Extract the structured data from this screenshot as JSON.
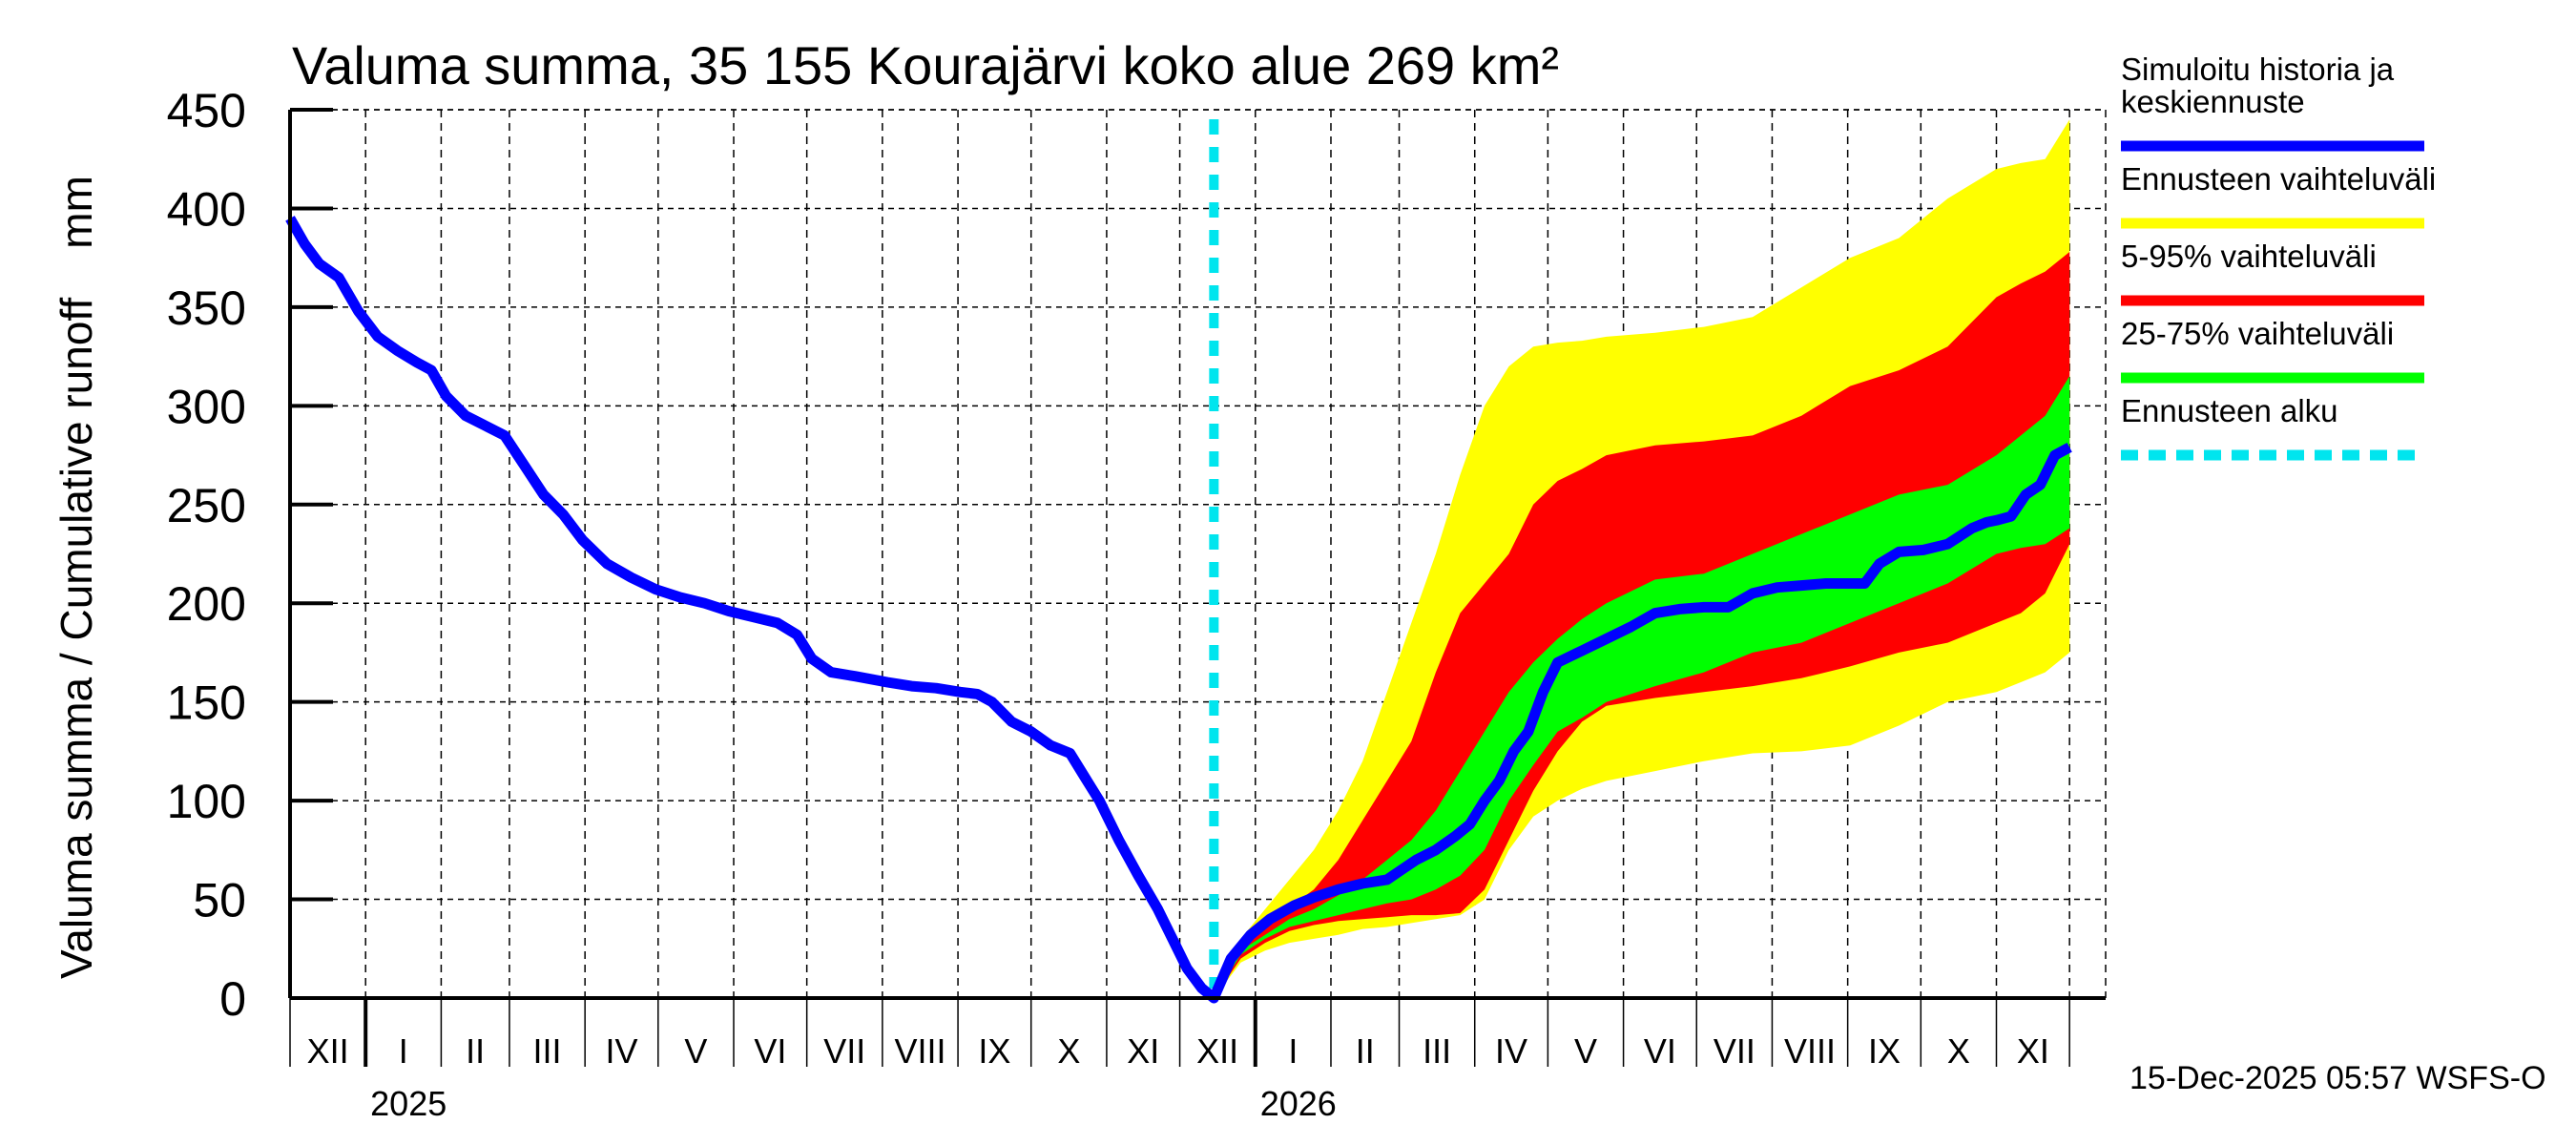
{
  "chart_data": {
    "type": "area",
    "title": "Valuma summa, 35 155 Kourajärvi koko alue 269 km²",
    "ylabel": "Valuma summa / Cumulative runoff    mm",
    "y_unit": "mm",
    "ylim": [
      0,
      450
    ],
    "yticks": [
      0,
      50,
      100,
      150,
      200,
      250,
      300,
      350,
      400,
      450
    ],
    "x_unit": "days since 2024-12-01",
    "xlim": [
      0,
      745
    ],
    "grid": true,
    "month_ticks": [
      {
        "label": "XII",
        "day": 0
      },
      {
        "label": "I",
        "day": 31
      },
      {
        "label": "II",
        "day": 62
      },
      {
        "label": "III",
        "day": 90
      },
      {
        "label": "IV",
        "day": 121
      },
      {
        "label": "V",
        "day": 151
      },
      {
        "label": "VI",
        "day": 182
      },
      {
        "label": "VII",
        "day": 212
      },
      {
        "label": "VIII",
        "day": 243
      },
      {
        "label": "IX",
        "day": 274
      },
      {
        "label": "X",
        "day": 304
      },
      {
        "label": "XI",
        "day": 335
      },
      {
        "label": "XII",
        "day": 365
      },
      {
        "label": "I",
        "day": 396
      },
      {
        "label": "II",
        "day": 427
      },
      {
        "label": "III",
        "day": 455
      },
      {
        "label": "IV",
        "day": 486
      },
      {
        "label": "V",
        "day": 516
      },
      {
        "label": "VI",
        "day": 547
      },
      {
        "label": "VII",
        "day": 577
      },
      {
        "label": "VIII",
        "day": 608
      },
      {
        "label": "IX",
        "day": 639
      },
      {
        "label": "X",
        "day": 669
      },
      {
        "label": "XI",
        "day": 700
      },
      {
        "label": "",
        "day": 730
      }
    ],
    "year_labels": [
      {
        "label": "2025",
        "day": 31
      },
      {
        "label": "2026",
        "day": 396
      }
    ],
    "forecast_start_day": 379,
    "series": [
      {
        "name": "Simuloitu historia ja keskiennuste",
        "color": "#0000ff",
        "days": [
          0,
          6,
          12,
          20,
          28,
          36,
          44,
          52,
          58,
          64,
          72,
          80,
          88,
          96,
          104,
          112,
          120,
          130,
          140,
          150,
          160,
          170,
          180,
          190,
          200,
          208,
          214,
          222,
          232,
          245,
          255,
          265,
          275,
          282,
          288,
          296,
          304,
          312,
          320,
          326,
          332,
          340,
          348,
          356,
          362,
          368,
          374,
          379,
          386,
          394,
          402,
          412,
          420,
          430,
          440,
          450,
          456,
          462,
          470,
          478,
          484,
          490,
          496,
          502,
          508,
          514,
          520,
          530,
          540,
          550,
          560,
          570,
          580,
          590,
          600,
          610,
          620,
          630,
          640,
          646,
          652,
          660,
          670,
          680,
          690,
          696,
          700,
          706,
          712,
          718,
          724,
          730
        ],
        "values": [
          395,
          382,
          372,
          365,
          348,
          335,
          328,
          322,
          318,
          305,
          295,
          290,
          285,
          270,
          255,
          245,
          232,
          220,
          213,
          207,
          203,
          200,
          196,
          193,
          190,
          184,
          172,
          165,
          163,
          160,
          158,
          157,
          155,
          154,
          150,
          140,
          135,
          128,
          124,
          112,
          100,
          80,
          62,
          45,
          30,
          15,
          5,
          0,
          20,
          32,
          40,
          47,
          51,
          55,
          58,
          60,
          65,
          70,
          75,
          82,
          88,
          100,
          110,
          125,
          135,
          155,
          170,
          176,
          182,
          188,
          195,
          197,
          198,
          198,
          205,
          208,
          209,
          210,
          210,
          210,
          220,
          226,
          227,
          230,
          238,
          241,
          242,
          244,
          255,
          260,
          275,
          279
        ]
      },
      {
        "name": "Ennusteen vaihteluväli",
        "color": "#ffff00",
        "days": [
          379,
          390,
          400,
          410,
          420,
          430,
          440,
          450,
          460,
          470,
          480,
          490,
          500,
          510,
          520,
          530,
          540,
          560,
          580,
          600,
          620,
          640,
          660,
          680,
          700,
          710,
          720,
          730
        ],
        "upper": [
          0,
          30,
          45,
          60,
          75,
          95,
          120,
          155,
          190,
          225,
          265,
          300,
          320,
          330,
          332,
          333,
          335,
          337,
          340,
          345,
          360,
          375,
          385,
          405,
          420,
          423,
          425,
          445
        ],
        "lower": [
          0,
          18,
          24,
          28,
          30,
          32,
          35,
          36,
          38,
          40,
          42,
          50,
          75,
          92,
          100,
          106,
          110,
          115,
          120,
          124,
          125,
          128,
          138,
          150,
          155,
          160,
          165,
          175
        ]
      },
      {
        "name": "5-95% vaihteluväli",
        "color": "#ff0000",
        "days": [
          379,
          390,
          400,
          410,
          420,
          430,
          440,
          450,
          460,
          470,
          480,
          490,
          500,
          510,
          520,
          530,
          540,
          560,
          580,
          600,
          620,
          640,
          660,
          680,
          700,
          710,
          720,
          730
        ],
        "upper": [
          0,
          26,
          36,
          46,
          55,
          70,
          90,
          110,
          130,
          165,
          195,
          210,
          225,
          250,
          262,
          268,
          275,
          280,
          282,
          285,
          295,
          310,
          318,
          330,
          355,
          362,
          368,
          378
        ],
        "lower": [
          0,
          20,
          28,
          34,
          37,
          39,
          40,
          41,
          42,
          42,
          43,
          55,
          80,
          105,
          125,
          140,
          148,
          152,
          155,
          158,
          162,
          168,
          175,
          180,
          190,
          195,
          205,
          230
        ]
      },
      {
        "name": "25-75% vaihteluväli",
        "color": "#00ff00",
        "days": [
          379,
          390,
          400,
          410,
          420,
          430,
          440,
          450,
          460,
          470,
          480,
          490,
          500,
          510,
          520,
          530,
          540,
          560,
          580,
          600,
          620,
          640,
          660,
          680,
          700,
          710,
          720,
          730
        ],
        "upper": [
          0,
          24,
          32,
          40,
          45,
          52,
          60,
          70,
          80,
          95,
          115,
          135,
          155,
          170,
          182,
          192,
          200,
          212,
          215,
          225,
          235,
          245,
          255,
          260,
          275,
          285,
          295,
          315
        ],
        "lower": [
          0,
          22,
          30,
          36,
          39,
          42,
          45,
          48,
          50,
          55,
          62,
          75,
          100,
          118,
          135,
          142,
          150,
          158,
          165,
          175,
          180,
          190,
          200,
          210,
          225,
          228,
          230,
          238
        ]
      }
    ],
    "forecast_start": {
      "name": "Ennusteen alku",
      "color": "#00e5ee"
    }
  },
  "legend": [
    {
      "label_lines": [
        "Simuloitu historia ja",
        "keskiennuste"
      ],
      "color": "#0000ff",
      "style": "solid"
    },
    {
      "label_lines": [
        "Ennusteen vaihteluväli"
      ],
      "color": "#ffff00",
      "style": "solid"
    },
    {
      "label_lines": [
        "5-95% vaihteluväli"
      ],
      "color": "#ff0000",
      "style": "solid"
    },
    {
      "label_lines": [
        "25-75% vaihteluväli"
      ],
      "color": "#00ff00",
      "style": "solid"
    },
    {
      "label_lines": [
        "Ennusteen alku"
      ],
      "color": "#00e5ee",
      "style": "dotted"
    }
  ],
  "footer": "15-Dec-2025 05:57 WSFS-O"
}
